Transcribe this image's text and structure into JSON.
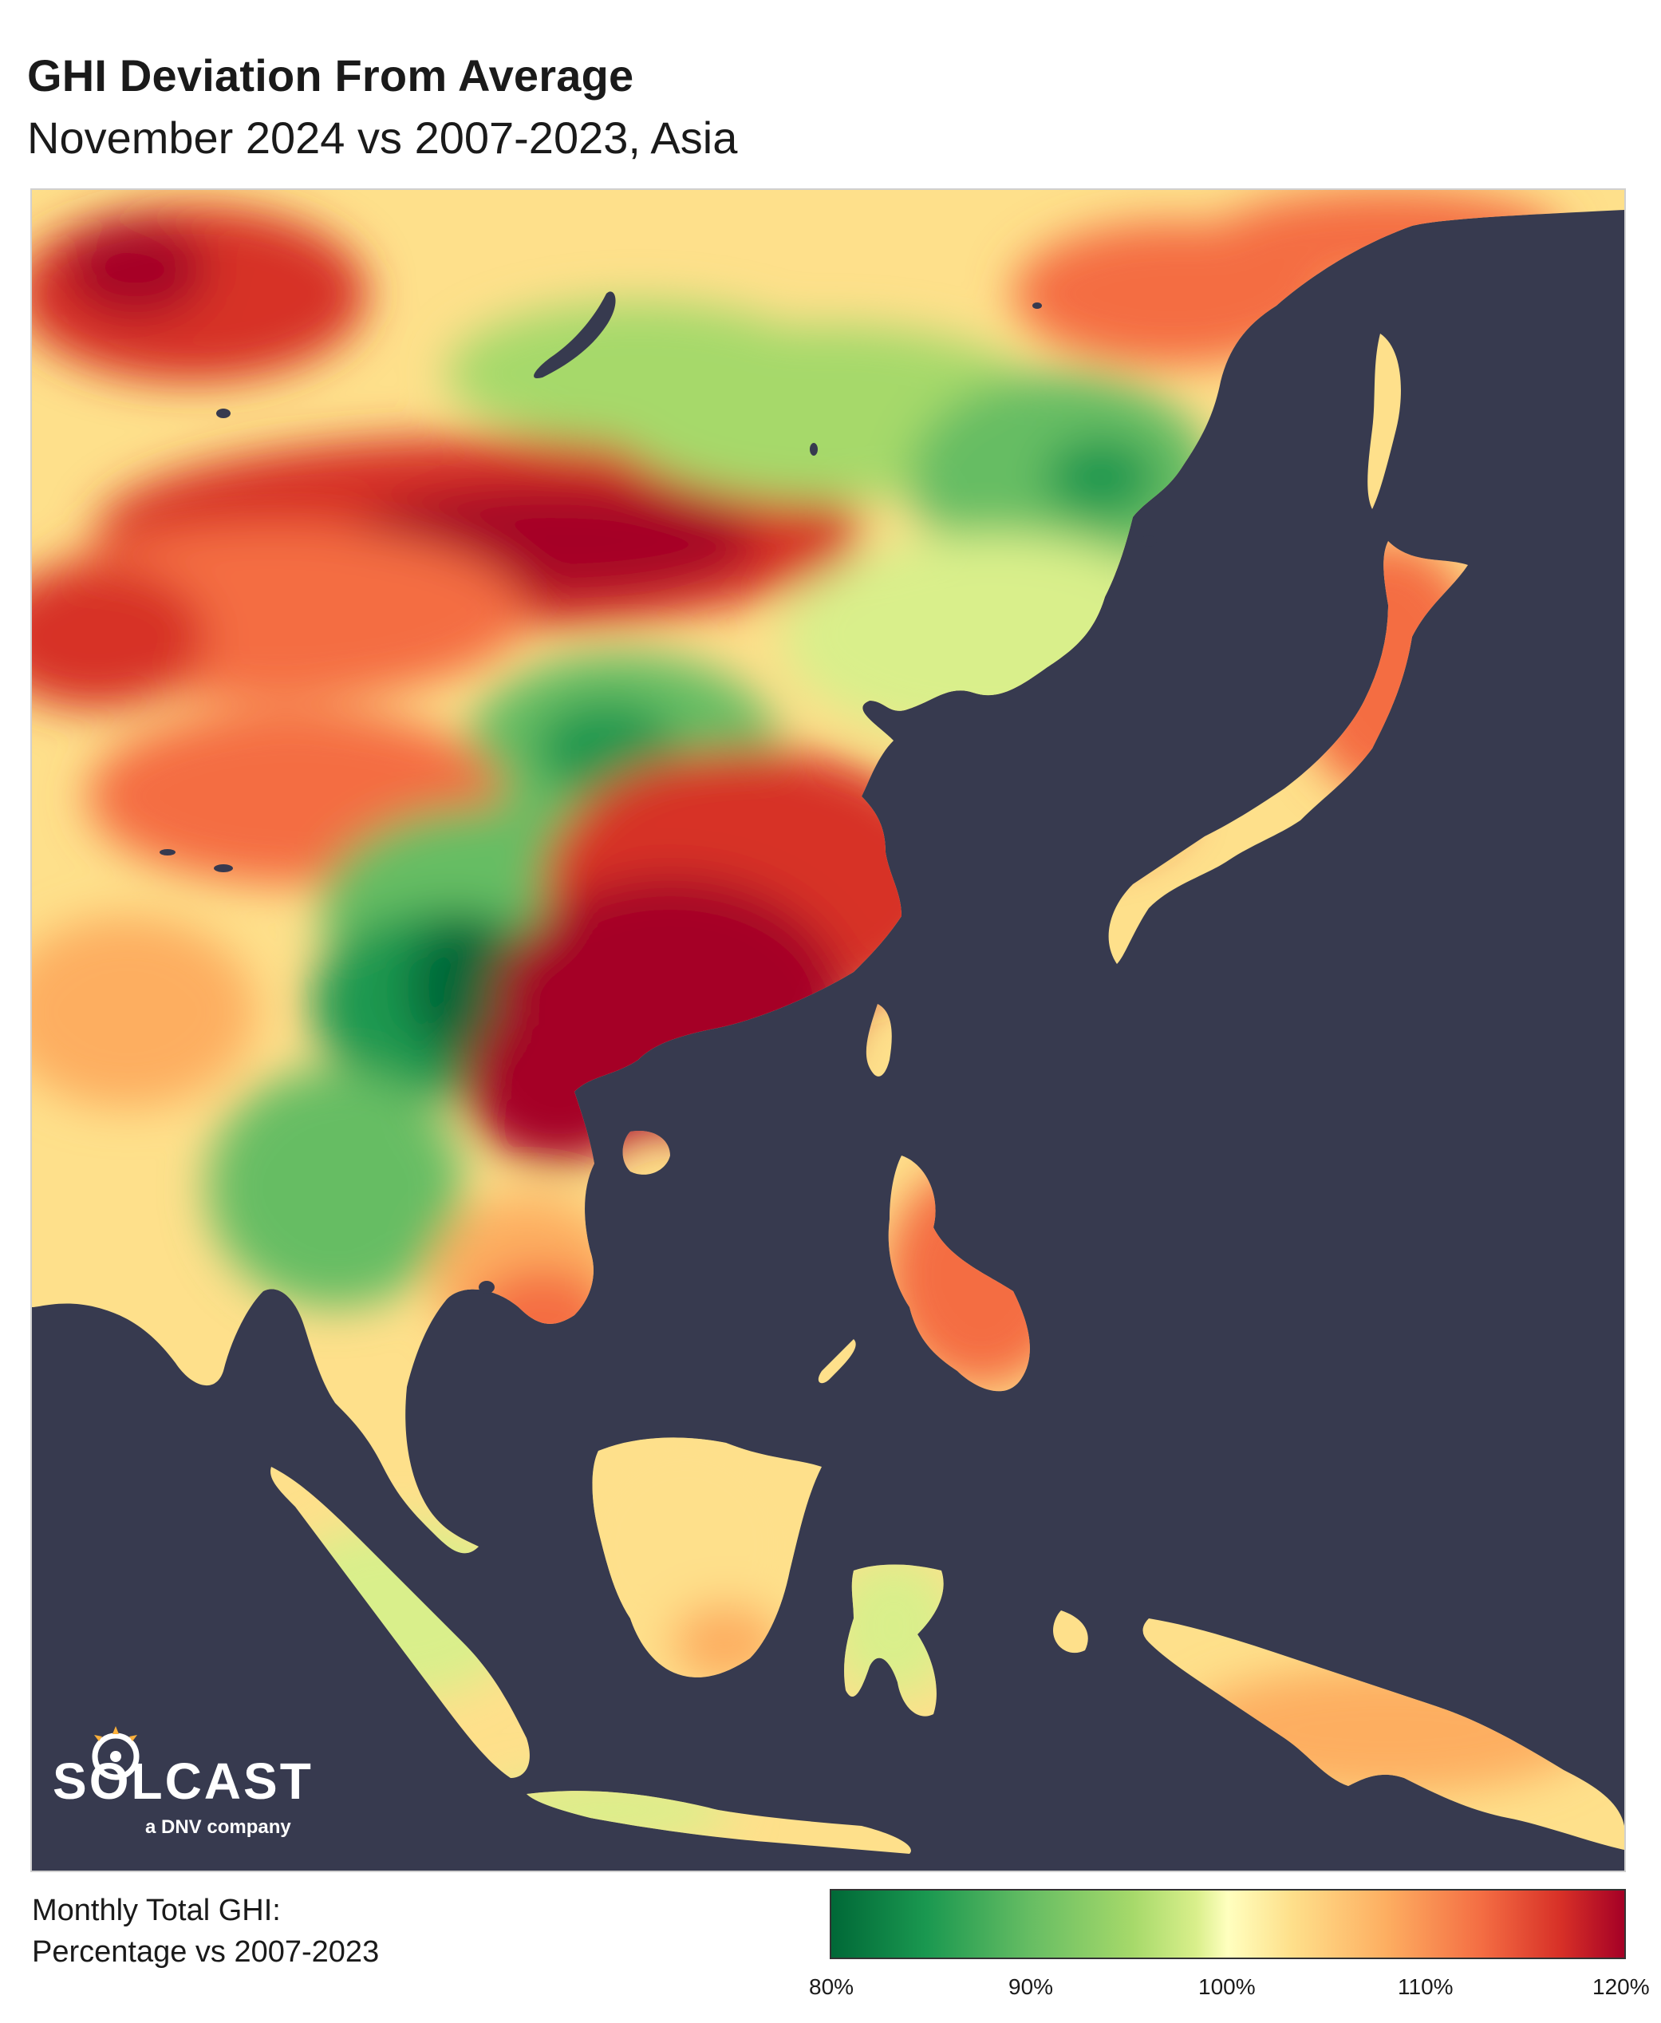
{
  "title": "GHI Deviation From Average",
  "subtitle": "November 2024 vs 2007-2023, Asia",
  "logo": {
    "name": "SOLCAST",
    "tagline": "a DNV company"
  },
  "legend": {
    "title_line1": "Monthly Total GHI:",
    "title_line2": "Percentage vs 2007-2023",
    "ticks": [
      "80%",
      "90%",
      "100%",
      "110%",
      "120%"
    ],
    "colors": [
      "#006837",
      "#1a9850",
      "#66bd63",
      "#a6d96a",
      "#d9ef8b",
      "#ffffbf",
      "#fee08b",
      "#fdae61",
      "#f46d43",
      "#d73027",
      "#a50026"
    ]
  },
  "colors": {
    "ocean": "#373a4f",
    "land_low": "#006837",
    "land_mid": "#ffffbf",
    "land_high": "#a50026"
  }
}
